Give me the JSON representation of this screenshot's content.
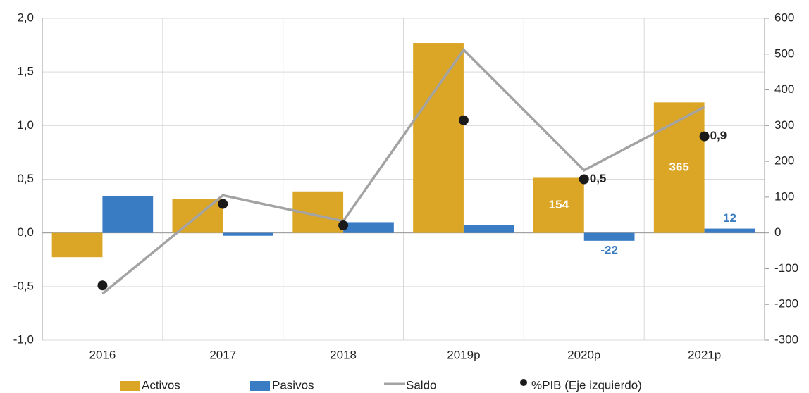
{
  "chart_data": {
    "type": "combo",
    "categories": [
      "2016",
      "2017",
      "2018",
      "2019p",
      "2020p",
      "2021p"
    ],
    "ylim": [
      -1.0,
      2.0
    ],
    "yticks": [
      {
        "value": -1.0,
        "label": "-1,0"
      },
      {
        "value": -0.5,
        "label": "-0,5"
      },
      {
        "value": 0,
        "label": "0,0"
      },
      {
        "value": 0.5,
        "label": "0,5"
      },
      {
        "value": 1.0,
        "label": "1,0"
      },
      {
        "value": 1.5,
        "label": "1,5"
      },
      {
        "value": 2.0,
        "label": "2,0"
      }
    ],
    "y2lim": [
      -300,
      600
    ],
    "y2ticks": [
      -300,
      -200,
      -100,
      0,
      100,
      200,
      300,
      400,
      500,
      600
    ],
    "grid": true,
    "legend": "bottom",
    "series": [
      {
        "name": "Activos",
        "type": "bar",
        "axis": "y2",
        "color": "#dba626",
        "label_color": "#ffffff",
        "values": [
          -68,
          95,
          116,
          531,
          154,
          365
        ],
        "value_labels": [
          null,
          null,
          null,
          null,
          "154",
          "365"
        ]
      },
      {
        "name": "Pasivos",
        "type": "bar",
        "axis": "y2",
        "color": "#3a7cc4",
        "label_color": "#3a7cc4",
        "values": [
          103,
          -8,
          30,
          22,
          -22,
          12
        ],
        "value_labels": [
          null,
          null,
          null,
          null,
          "-22",
          "12"
        ]
      },
      {
        "name": "Saldo",
        "type": "line",
        "axis": "y2",
        "color": "#a3a3a3",
        "values": [
          -170,
          105,
          33,
          512,
          175,
          352
        ]
      },
      {
        "name": "%PIB (Eje izquierdo)",
        "type": "scatter",
        "axis": "y",
        "color": "#1a1a1a",
        "label_color": "#222222",
        "values": [
          -0.49,
          0.27,
          0.07,
          1.05,
          0.5,
          0.9
        ],
        "value_labels": [
          null,
          null,
          null,
          null,
          "0,5",
          "0,9"
        ]
      }
    ]
  }
}
